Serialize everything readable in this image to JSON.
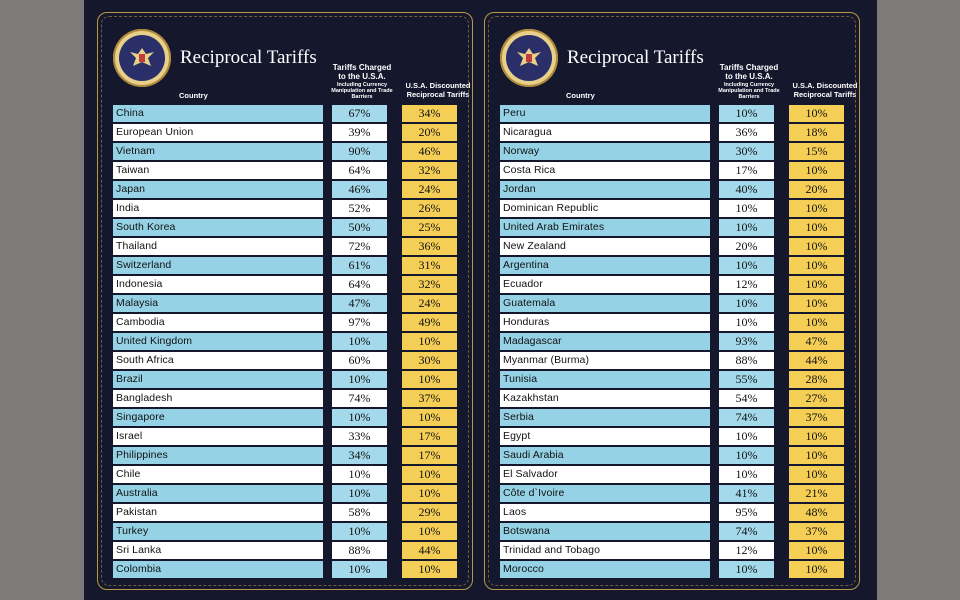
{
  "title": "Reciprocal Tariffs",
  "seal_label": "PRESIDENT OF THE UNITED STATES",
  "headers": {
    "country": "Country",
    "charged_main": "Tariffs Charged to the U.S.A.",
    "charged_sub": "Including Currency Manipulation and Trade Barriers",
    "discounted": "U.S.A. Discounted Reciprocal Tariffs"
  },
  "colors": {
    "background": "#15172d",
    "border_gold": "#b89a44",
    "row_blue": "#96d2e6",
    "rate_yellow": "#f5cf55"
  },
  "left": [
    {
      "country": "China",
      "charged": "67%",
      "rate": "34%"
    },
    {
      "country": "European Union",
      "charged": "39%",
      "rate": "20%"
    },
    {
      "country": "Vietnam",
      "charged": "90%",
      "rate": "46%"
    },
    {
      "country": "Taiwan",
      "charged": "64%",
      "rate": "32%"
    },
    {
      "country": "Japan",
      "charged": "46%",
      "rate": "24%"
    },
    {
      "country": "India",
      "charged": "52%",
      "rate": "26%"
    },
    {
      "country": "South Korea",
      "charged": "50%",
      "rate": "25%"
    },
    {
      "country": "Thailand",
      "charged": "72%",
      "rate": "36%"
    },
    {
      "country": "Switzerland",
      "charged": "61%",
      "rate": "31%"
    },
    {
      "country": "Indonesia",
      "charged": "64%",
      "rate": "32%"
    },
    {
      "country": "Malaysia",
      "charged": "47%",
      "rate": "24%"
    },
    {
      "country": "Cambodia",
      "charged": "97%",
      "rate": "49%"
    },
    {
      "country": "United Kingdom",
      "charged": "10%",
      "rate": "10%"
    },
    {
      "country": "South Africa",
      "charged": "60%",
      "rate": "30%"
    },
    {
      "country": "Brazil",
      "charged": "10%",
      "rate": "10%"
    },
    {
      "country": "Bangladesh",
      "charged": "74%",
      "rate": "37%"
    },
    {
      "country": "Singapore",
      "charged": "10%",
      "rate": "10%"
    },
    {
      "country": "Israel",
      "charged": "33%",
      "rate": "17%"
    },
    {
      "country": "Philippines",
      "charged": "34%",
      "rate": "17%"
    },
    {
      "country": "Chile",
      "charged": "10%",
      "rate": "10%"
    },
    {
      "country": "Australia",
      "charged": "10%",
      "rate": "10%"
    },
    {
      "country": "Pakistan",
      "charged": "58%",
      "rate": "29%"
    },
    {
      "country": "Turkey",
      "charged": "10%",
      "rate": "10%"
    },
    {
      "country": "Sri Lanka",
      "charged": "88%",
      "rate": "44%"
    },
    {
      "country": "Colombia",
      "charged": "10%",
      "rate": "10%"
    }
  ],
  "right": [
    {
      "country": "Peru",
      "charged": "10%",
      "rate": "10%"
    },
    {
      "country": "Nicaragua",
      "charged": "36%",
      "rate": "18%"
    },
    {
      "country": "Norway",
      "charged": "30%",
      "rate": "15%"
    },
    {
      "country": "Costa Rica",
      "charged": "17%",
      "rate": "10%"
    },
    {
      "country": "Jordan",
      "charged": "40%",
      "rate": "20%"
    },
    {
      "country": "Dominican Republic",
      "charged": "10%",
      "rate": "10%"
    },
    {
      "country": "United Arab Emirates",
      "charged": "10%",
      "rate": "10%"
    },
    {
      "country": "New Zealand",
      "charged": "20%",
      "rate": "10%"
    },
    {
      "country": "Argentina",
      "charged": "10%",
      "rate": "10%"
    },
    {
      "country": "Ecuador",
      "charged": "12%",
      "rate": "10%"
    },
    {
      "country": "Guatemala",
      "charged": "10%",
      "rate": "10%"
    },
    {
      "country": "Honduras",
      "charged": "10%",
      "rate": "10%"
    },
    {
      "country": "Madagascar",
      "charged": "93%",
      "rate": "47%"
    },
    {
      "country": "Myanmar (Burma)",
      "charged": "88%",
      "rate": "44%"
    },
    {
      "country": "Tunisia",
      "charged": "55%",
      "rate": "28%"
    },
    {
      "country": "Kazakhstan",
      "charged": "54%",
      "rate": "27%"
    },
    {
      "country": "Serbia",
      "charged": "74%",
      "rate": "37%"
    },
    {
      "country": "Egypt",
      "charged": "10%",
      "rate": "10%"
    },
    {
      "country": "Saudi Arabia",
      "charged": "10%",
      "rate": "10%"
    },
    {
      "country": "El Salvador",
      "charged": "10%",
      "rate": "10%"
    },
    {
      "country": "Côte d`Ivoire",
      "charged": "41%",
      "rate": "21%"
    },
    {
      "country": "Laos",
      "charged": "95%",
      "rate": "48%"
    },
    {
      "country": "Botswana",
      "charged": "74%",
      "rate": "37%"
    },
    {
      "country": "Trinidad and Tobago",
      "charged": "12%",
      "rate": "10%"
    },
    {
      "country": "Morocco",
      "charged": "10%",
      "rate": "10%"
    }
  ]
}
